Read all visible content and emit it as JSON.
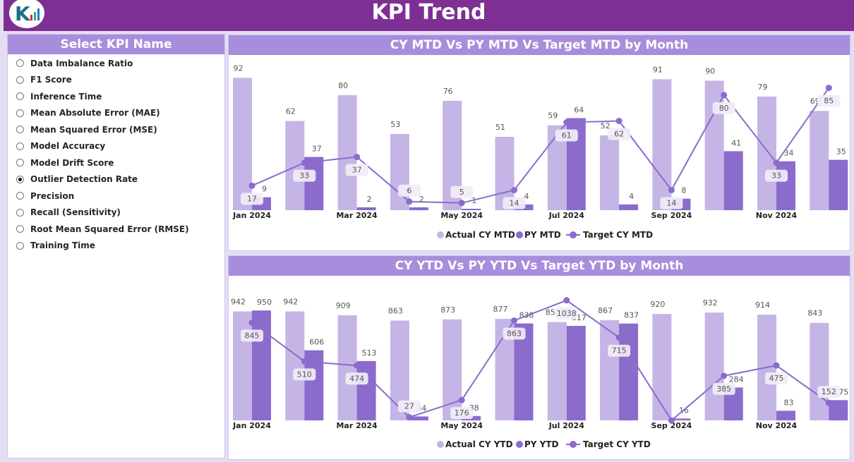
{
  "header": {
    "title": "KPI Trend",
    "logo_text": "K"
  },
  "sidebar": {
    "title": "Select KPI Name",
    "selected": "Outlier Detection Rate",
    "items": [
      "Data Imbalance Ratio",
      "F1 Score",
      "Inference Time",
      "Mean Absolute Error (MAE)",
      "Mean Squared Error (MSE)",
      "Model Accuracy",
      "Model Drift Score",
      "Outlier Detection Rate",
      "Precision",
      "Recall (Sensitivity)",
      "Root Mean Squared Error (RMSE)",
      "Training Time"
    ]
  },
  "colors": {
    "actual": "#c5b5e6",
    "py": "#8b6bcc",
    "target": "#8b6bcc",
    "header": "#7e2f93",
    "title_bar": "#a88ddc"
  },
  "chart_data": [
    {
      "type": "bar",
      "title": "CY MTD Vs PY MTD Vs Target MTD by Month",
      "categories": [
        "Jan 2024",
        "Feb 2024",
        "Mar 2024",
        "Apr 2024",
        "May 2024",
        "Jun 2024",
        "Jul 2024",
        "Aug 2024",
        "Sep 2024",
        "Oct 2024",
        "Nov 2024",
        "Dec 2024"
      ],
      "tick_labels": [
        "Jan 2024",
        "",
        "Mar 2024",
        "",
        "May 2024",
        "",
        "Jul 2024",
        "",
        "Sep 2024",
        "",
        "Nov 2024",
        ""
      ],
      "series": [
        {
          "name": "Actual CY MTD",
          "kind": "bar",
          "values": [
            92,
            62,
            80,
            53,
            76,
            51,
            59,
            52,
            91,
            90,
            79,
            69
          ]
        },
        {
          "name": "PY MTD",
          "kind": "bar",
          "values": [
            9,
            37,
            2,
            2,
            1,
            4,
            64,
            4,
            8,
            41,
            34,
            35
          ]
        },
        {
          "name": "Target CY MTD",
          "kind": "line",
          "values": [
            17,
            33,
            37,
            6,
            5,
            14,
            61,
            62,
            14,
            80,
            33,
            85
          ]
        }
      ],
      "legend": "bottom-center",
      "grid": false
    },
    {
      "type": "bar",
      "title": "CY YTD Vs PY YTD Vs Target YTD by Month",
      "categories": [
        "Jan 2024",
        "Feb 2024",
        "Mar 2024",
        "Apr 2024",
        "May 2024",
        "Jun 2024",
        "Jul 2024",
        "Aug 2024",
        "Sep 2024",
        "Oct 2024",
        "Nov 2024",
        "Dec 2024"
      ],
      "tick_labels": [
        "Jan 2024",
        "",
        "Mar 2024",
        "",
        "May 2024",
        "",
        "Jul 2024",
        "",
        "Sep 2024",
        "",
        "Nov 2024",
        ""
      ],
      "series": [
        {
          "name": "Actual CY YTD",
          "kind": "bar",
          "values": [
            942,
            942,
            909,
            863,
            873,
            877,
            850,
            867,
            920,
            932,
            914,
            843
          ]
        },
        {
          "name": "PY YTD",
          "kind": "bar",
          "values": [
            950,
            606,
            513,
            34,
            38,
            838,
            817,
            837,
            16,
            284,
            83,
            175
          ]
        },
        {
          "name": "Target CY YTD",
          "kind": "line",
          "values": [
            845,
            510,
            474,
            27,
            176,
            863,
            1038,
            715,
            null,
            385,
            475,
            152
          ]
        }
      ],
      "legend": "bottom-center",
      "grid": false
    }
  ]
}
